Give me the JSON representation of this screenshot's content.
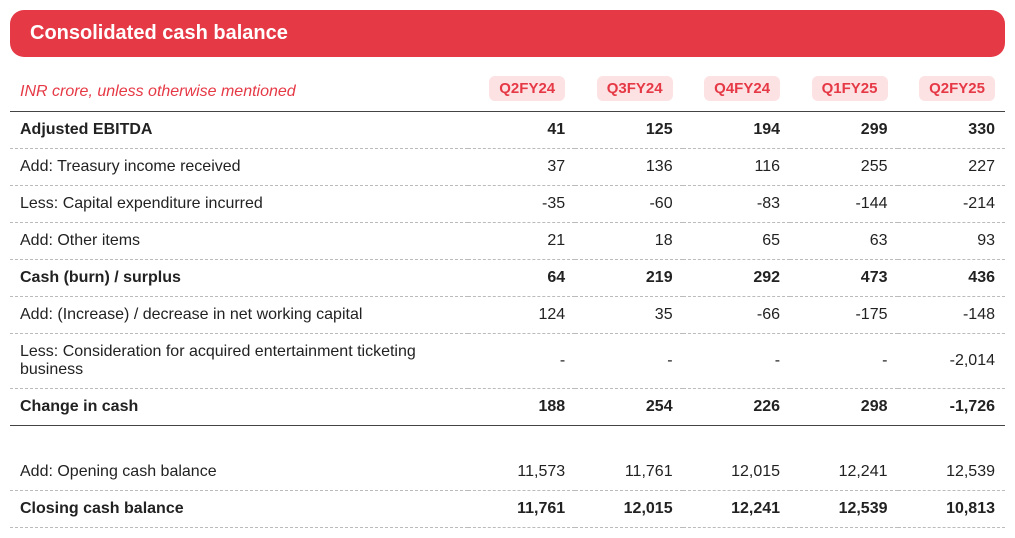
{
  "title": "Consolidated cash balance",
  "subtitle": "INR crore, unless otherwise mentioned",
  "columns": [
    "Q2FY24",
    "Q3FY24",
    "Q4FY24",
    "Q1FY25",
    "Q2FY25"
  ],
  "colors": {
    "header_bg": "#e63946",
    "header_text": "#ffffff",
    "badge_bg": "#fde2e4",
    "badge_text": "#e63946",
    "body_text": "#222222",
    "dash_border": "#bbbbbb"
  },
  "rows": [
    {
      "label": "Adjusted EBITDA",
      "values": [
        "41",
        "125",
        "194",
        "299",
        "330"
      ],
      "bold": true
    },
    {
      "label": "Add: Treasury income received",
      "values": [
        "37",
        "136",
        "116",
        "255",
        "227"
      ],
      "bold": false
    },
    {
      "label": "Less: Capital expenditure incurred",
      "values": [
        "-35",
        "-60",
        "-83",
        "-144",
        "-214"
      ],
      "bold": false
    },
    {
      "label": "Add: Other items",
      "values": [
        "21",
        "18",
        "65",
        "63",
        "93"
      ],
      "bold": false
    },
    {
      "label": "Cash (burn) / surplus",
      "values": [
        "64",
        "219",
        "292",
        "473",
        "436"
      ],
      "bold": true
    },
    {
      "label": "Add: (Increase) / decrease in net working capital",
      "values": [
        "124",
        "35",
        "-66",
        "-175",
        "-148"
      ],
      "bold": false
    },
    {
      "label": "Less: Consideration for acquired entertainment ticketing business",
      "values": [
        "-",
        "-",
        "-",
        "-",
        "-2,014"
      ],
      "bold": false
    },
    {
      "label": "Change in cash",
      "values": [
        "188",
        "254",
        "226",
        "298",
        "-1,726"
      ],
      "bold": true,
      "solid": true
    },
    {
      "gap": true
    },
    {
      "label": "Add: Opening cash balance",
      "values": [
        "11,573",
        "11,761",
        "12,015",
        "12,241",
        "12,539"
      ],
      "bold": false
    },
    {
      "label": "Closing cash balance",
      "values": [
        "11,761",
        "12,015",
        "12,241",
        "12,539",
        "10,813"
      ],
      "bold": true
    }
  ]
}
